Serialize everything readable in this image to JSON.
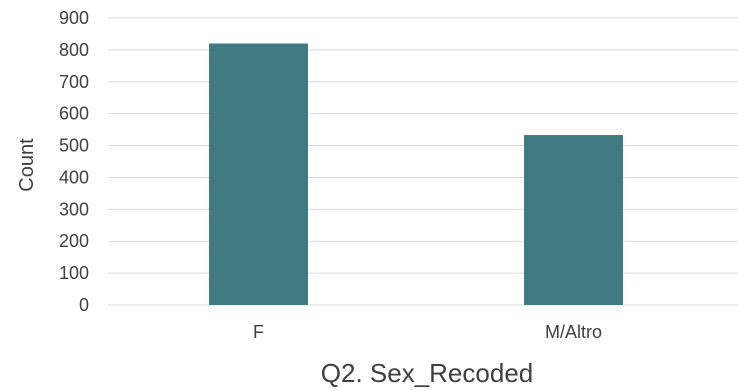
{
  "chart_data": {
    "type": "bar",
    "categories": [
      "F",
      "M/Altro"
    ],
    "values": [
      820,
      533
    ],
    "xlabel": "Q2. Sex_Recoded",
    "ylabel": "Count",
    "ylim": [
      0,
      900
    ],
    "yticks": [
      0,
      100,
      200,
      300,
      400,
      500,
      600,
      700,
      800,
      900
    ],
    "grid": true,
    "legend": "none",
    "bar_color": "#407b82",
    "grid_color": "#d9d9d9",
    "text_color": "#404040"
  }
}
